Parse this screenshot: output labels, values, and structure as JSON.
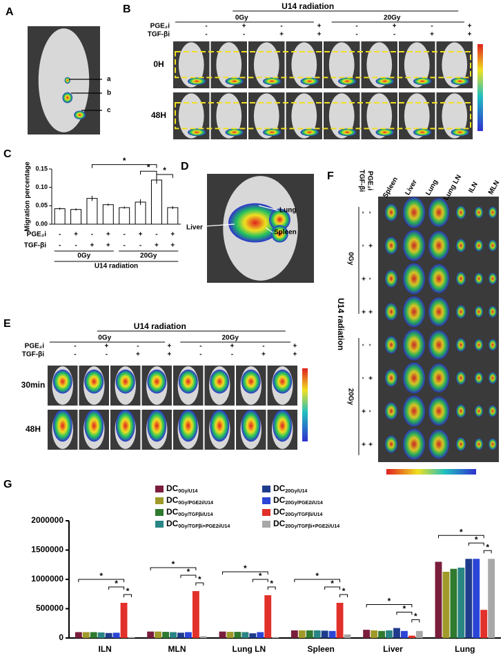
{
  "panel_a": {
    "letter": "A",
    "labels": [
      "a",
      "b",
      "c"
    ]
  },
  "panel_b": {
    "letter": "B",
    "header": "U14 radiation",
    "doses": [
      "0Gy",
      "20Gy"
    ],
    "row_labels": [
      "PGE₂i",
      "TGF-βi"
    ],
    "pge": [
      "-",
      "+",
      "-",
      "+",
      "-",
      "+",
      "-",
      "+"
    ],
    "tgf": [
      "-",
      "-",
      "+",
      "+",
      "-",
      "-",
      "+",
      "+"
    ],
    "times": [
      "0H",
      "48H"
    ]
  },
  "panel_c": {
    "letter": "C"
  },
  "panel_d": {
    "letter": "D",
    "labels": [
      "Lung",
      "Liver",
      "Spleen"
    ]
  },
  "panel_e": {
    "letter": "E",
    "header": "U14 radiation",
    "doses": [
      "0Gy",
      "20Gy"
    ],
    "row_labels": [
      "PGE₂i",
      "TGF-βi"
    ],
    "pge": [
      "-",
      "+",
      "-",
      "+",
      "-",
      "+",
      "-",
      "+"
    ],
    "tgf": [
      "-",
      "-",
      "+",
      "+",
      "-",
      "-",
      "+",
      "+"
    ],
    "times": [
      "30min",
      "48H"
    ]
  },
  "panel_f": {
    "letter": "F",
    "row_labels": [
      "PGE₂i",
      "TGF-βi"
    ],
    "organs": [
      "Spleen",
      "Liver",
      "Lung",
      "Lung LN",
      "ILN",
      "MLN"
    ],
    "header": "U14 radiation",
    "doses": [
      "0Gy",
      "20Gy"
    ],
    "pge": [
      "-",
      "-",
      "+",
      "+",
      "-",
      "-",
      "+",
      "+"
    ],
    "tgf": [
      "-",
      "+",
      "-",
      "+",
      "-",
      "+",
      "-",
      "+"
    ]
  },
  "panel_g": {
    "letter": "G"
  },
  "chart_data": [
    {
      "type": "bar",
      "ylabel": "Migration percentage",
      "values": [
        0.042,
        0.04,
        0.07,
        0.053,
        0.045,
        0.06,
        0.12,
        0.045
      ],
      "errors": [
        0.003,
        0.003,
        0.007,
        0.003,
        0.003,
        0.008,
        0.01,
        0.004
      ],
      "color": "#ffffff",
      "ylim": [
        0,
        0.15
      ],
      "yticks": [
        {
          "value": 0,
          "label": "0.00"
        },
        {
          "value": 0.05,
          "label": "0.05"
        },
        {
          "value": 0.1,
          "label": "0.10"
        },
        {
          "value": 0.15,
          "label": "0.15"
        }
      ],
      "annotation": "*",
      "row_labels": [
        "PGE₂i",
        "TGF-βi"
      ],
      "pge": [
        "-",
        "+",
        "-",
        "+",
        "-",
        "+",
        "-",
        "+"
      ],
      "tgf": [
        "-",
        "-",
        "+",
        "+",
        "-",
        "-",
        "+",
        "+"
      ],
      "groups": [
        "0Gy",
        "20Gy"
      ],
      "group_label": "U14 radiation"
    },
    {
      "type": "grouped_bar",
      "categories": [
        "ILN",
        "MLN",
        "Lung LN",
        "Spleen",
        "Liver",
        "Lung"
      ],
      "series": [
        {
          "name": "DC0Gy/U14",
          "color": "#7a1e3c",
          "values": [
            100000,
            110000,
            110000,
            130000,
            140000,
            1300000
          ]
        },
        {
          "name": "DC0Gy/PGE2i/U14",
          "color": "#a09a2a",
          "values": [
            100000,
            110000,
            105000,
            130000,
            130000,
            1130000
          ]
        },
        {
          "name": "DC0Gy/TGFβi/U14",
          "color": "#2f7a2f",
          "values": [
            100000,
            105000,
            105000,
            130000,
            120000,
            1180000
          ]
        },
        {
          "name": "DC0Gy/TGFβi+PGE2i/U14",
          "color": "#2a8585",
          "values": [
            95000,
            100000,
            100000,
            130000,
            130000,
            1200000
          ]
        },
        {
          "name": "DC20Gy/U14",
          "color": "#1f3c8c",
          "values": [
            85000,
            90000,
            80000,
            125000,
            170000,
            1350000
          ]
        },
        {
          "name": "DC20Gy/PGE2i/U14",
          "color": "#2b45d6",
          "values": [
            90000,
            100000,
            100000,
            120000,
            120000,
            1350000
          ]
        },
        {
          "name": "DC20Gy/TGFβi/U14",
          "color": "#e2302a",
          "values": [
            600000,
            800000,
            730000,
            600000,
            40000,
            480000
          ]
        },
        {
          "name": "DC20Gy/TGFβi+PGE2i/U14",
          "color": "#a8a8a8",
          "values": [
            15000,
            30000,
            15000,
            60000,
            120000,
            1350000
          ]
        }
      ],
      "ylim": [
        0,
        2000000
      ],
      "yticks": [
        0,
        500000,
        1000000,
        1500000,
        2000000
      ],
      "annotation": "*"
    }
  ]
}
